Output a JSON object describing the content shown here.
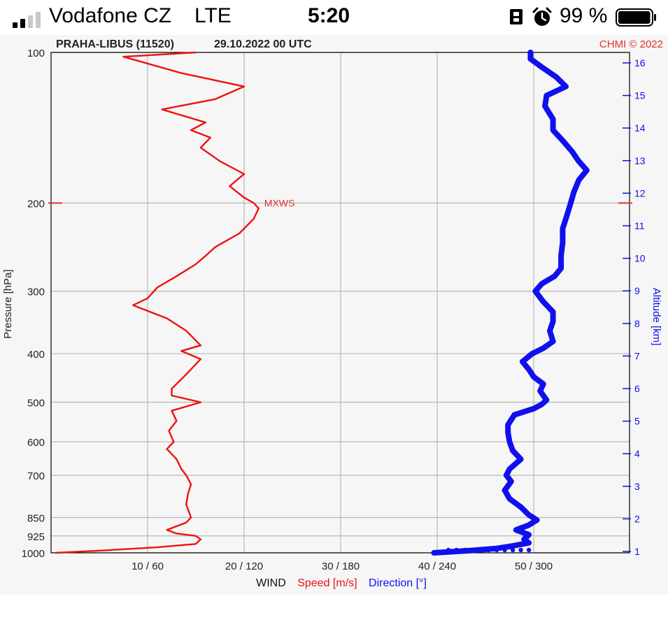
{
  "status_bar": {
    "carrier": "Vodafone CZ",
    "network": "LTE",
    "time": "5:20",
    "battery_percent": "99 %",
    "signal_bars_filled": 2,
    "signal_bars_total": 4,
    "battery_level": 0.99,
    "icons": [
      "signal-icon",
      "lock-icon",
      "alarm-icon",
      "battery-icon"
    ]
  },
  "chart_header": {
    "station": "PRAHA-LIBUS (11520)",
    "datetime": "29.10.2022 00 UTC",
    "credit": "CHMI © 2022"
  },
  "chart_data": {
    "type": "line",
    "colors": {
      "speed": "#ee1111",
      "direction": "#1010ee",
      "marker": "#e03030",
      "grid": "#b8b8b8",
      "plot_bg": "#f6f6f6"
    },
    "y_axis": {
      "label": "Pressure [hPa]",
      "ticks": [
        100,
        200,
        300,
        400,
        500,
        600,
        700,
        850,
        925,
        1000
      ],
      "range": [
        1000,
        100
      ]
    },
    "x_axis": {
      "ticks": [
        "10 / 60",
        "20 / 120",
        "30 / 180",
        "40 / 240",
        "50 / 300"
      ],
      "label_prefix": "WIND",
      "label_speed": "Speed [m/s]",
      "label_direction": "Direction [°]",
      "speed_range": [
        0,
        60
      ],
      "direction_range": [
        0,
        360
      ]
    },
    "right_axis": {
      "label": "Altitude [km]",
      "ticks": [
        "1",
        "2",
        "3",
        "4",
        "5",
        "6",
        "7",
        "8",
        "9",
        "10",
        "11",
        "12",
        "13",
        "14",
        "15",
        "16"
      ]
    },
    "annotation": {
      "label": "MXWS",
      "pressure": 200,
      "speed": 21
    },
    "series": [
      {
        "name": "Speed [m/s]",
        "unit": "m/s",
        "points": [
          [
            1000,
            0.5
          ],
          [
            990,
            5
          ],
          [
            975,
            11
          ],
          [
            960,
            15
          ],
          [
            940,
            15.5
          ],
          [
            925,
            15
          ],
          [
            915,
            13
          ],
          [
            900,
            12
          ],
          [
            870,
            14
          ],
          [
            850,
            14.5
          ],
          [
            800,
            14
          ],
          [
            760,
            14.2
          ],
          [
            730,
            14.5
          ],
          [
            700,
            14
          ],
          [
            680,
            13.5
          ],
          [
            650,
            13
          ],
          [
            620,
            12
          ],
          [
            600,
            12.7
          ],
          [
            570,
            12.2
          ],
          [
            545,
            13
          ],
          [
            520,
            12.5
          ],
          [
            500,
            15.5
          ],
          [
            485,
            12.5
          ],
          [
            470,
            12.5
          ],
          [
            440,
            14
          ],
          [
            410,
            15.5
          ],
          [
            395,
            13.5
          ],
          [
            385,
            15.5
          ],
          [
            360,
            14
          ],
          [
            340,
            12
          ],
          [
            320,
            8.5
          ],
          [
            310,
            10
          ],
          [
            295,
            11
          ],
          [
            280,
            13
          ],
          [
            265,
            15
          ],
          [
            255,
            16
          ],
          [
            245,
            17
          ],
          [
            230,
            19.5
          ],
          [
            215,
            21
          ],
          [
            205,
            21.5
          ],
          [
            200,
            21
          ],
          [
            195,
            20
          ],
          [
            185,
            18.5
          ],
          [
            175,
            20
          ],
          [
            165,
            17.5
          ],
          [
            155,
            15.5
          ],
          [
            148,
            16.5
          ],
          [
            143,
            14.5
          ],
          [
            138,
            16
          ],
          [
            130,
            11.5
          ],
          [
            124,
            17
          ],
          [
            117,
            20
          ],
          [
            110,
            13.5
          ],
          [
            102,
            7.5
          ],
          [
            100,
            15
          ]
        ]
      },
      {
        "name": "Direction [°]",
        "unit": "°",
        "points": [
          [
            1000,
            238
          ],
          [
            990,
            260
          ],
          [
            980,
            277
          ],
          [
            970,
            286
          ],
          [
            955,
            297
          ],
          [
            940,
            294
          ],
          [
            920,
            297
          ],
          [
            900,
            289
          ],
          [
            880,
            297
          ],
          [
            860,
            302
          ],
          [
            840,
            297
          ],
          [
            810,
            292
          ],
          [
            780,
            285
          ],
          [
            750,
            282
          ],
          [
            720,
            286
          ],
          [
            700,
            283
          ],
          [
            680,
            285
          ],
          [
            650,
            292
          ],
          [
            625,
            287
          ],
          [
            600,
            285
          ],
          [
            575,
            284
          ],
          [
            555,
            284
          ],
          [
            530,
            288
          ],
          [
            515,
            300
          ],
          [
            505,
            305
          ],
          [
            495,
            308
          ],
          [
            485,
            306
          ],
          [
            475,
            304
          ],
          [
            460,
            306
          ],
          [
            445,
            300
          ],
          [
            430,
            297
          ],
          [
            415,
            293
          ],
          [
            400,
            299
          ],
          [
            390,
            306
          ],
          [
            378,
            312
          ],
          [
            360,
            310
          ],
          [
            345,
            312
          ],
          [
            330,
            312
          ],
          [
            315,
            306
          ],
          [
            300,
            301
          ],
          [
            290,
            305
          ],
          [
            280,
            313
          ],
          [
            270,
            317
          ],
          [
            255,
            317
          ],
          [
            240,
            318
          ],
          [
            225,
            318
          ],
          [
            210,
            321
          ],
          [
            200,
            323
          ],
          [
            190,
            325
          ],
          [
            180,
            328
          ],
          [
            172,
            333
          ],
          [
            165,
            328
          ],
          [
            158,
            324
          ],
          [
            150,
            318
          ],
          [
            143,
            312
          ],
          [
            136,
            312
          ],
          [
            128,
            307
          ],
          [
            122,
            308
          ],
          [
            117,
            320
          ],
          [
            112,
            314
          ],
          [
            107,
            305
          ],
          [
            103,
            298
          ],
          [
            100,
            298
          ]
        ]
      }
    ],
    "surface_points": {
      "name": "Direction [°]",
      "points": [
        [
          1000,
          247
        ],
        [
          1000,
          252
        ],
        [
          1000,
          257
        ],
        [
          1000,
          262
        ],
        [
          1000,
          267
        ],
        [
          1000,
          272
        ],
        [
          1000,
          277
        ],
        [
          1000,
          282
        ],
        [
          1000,
          287
        ],
        [
          1000,
          292
        ],
        [
          1000,
          297
        ]
      ]
    }
  }
}
